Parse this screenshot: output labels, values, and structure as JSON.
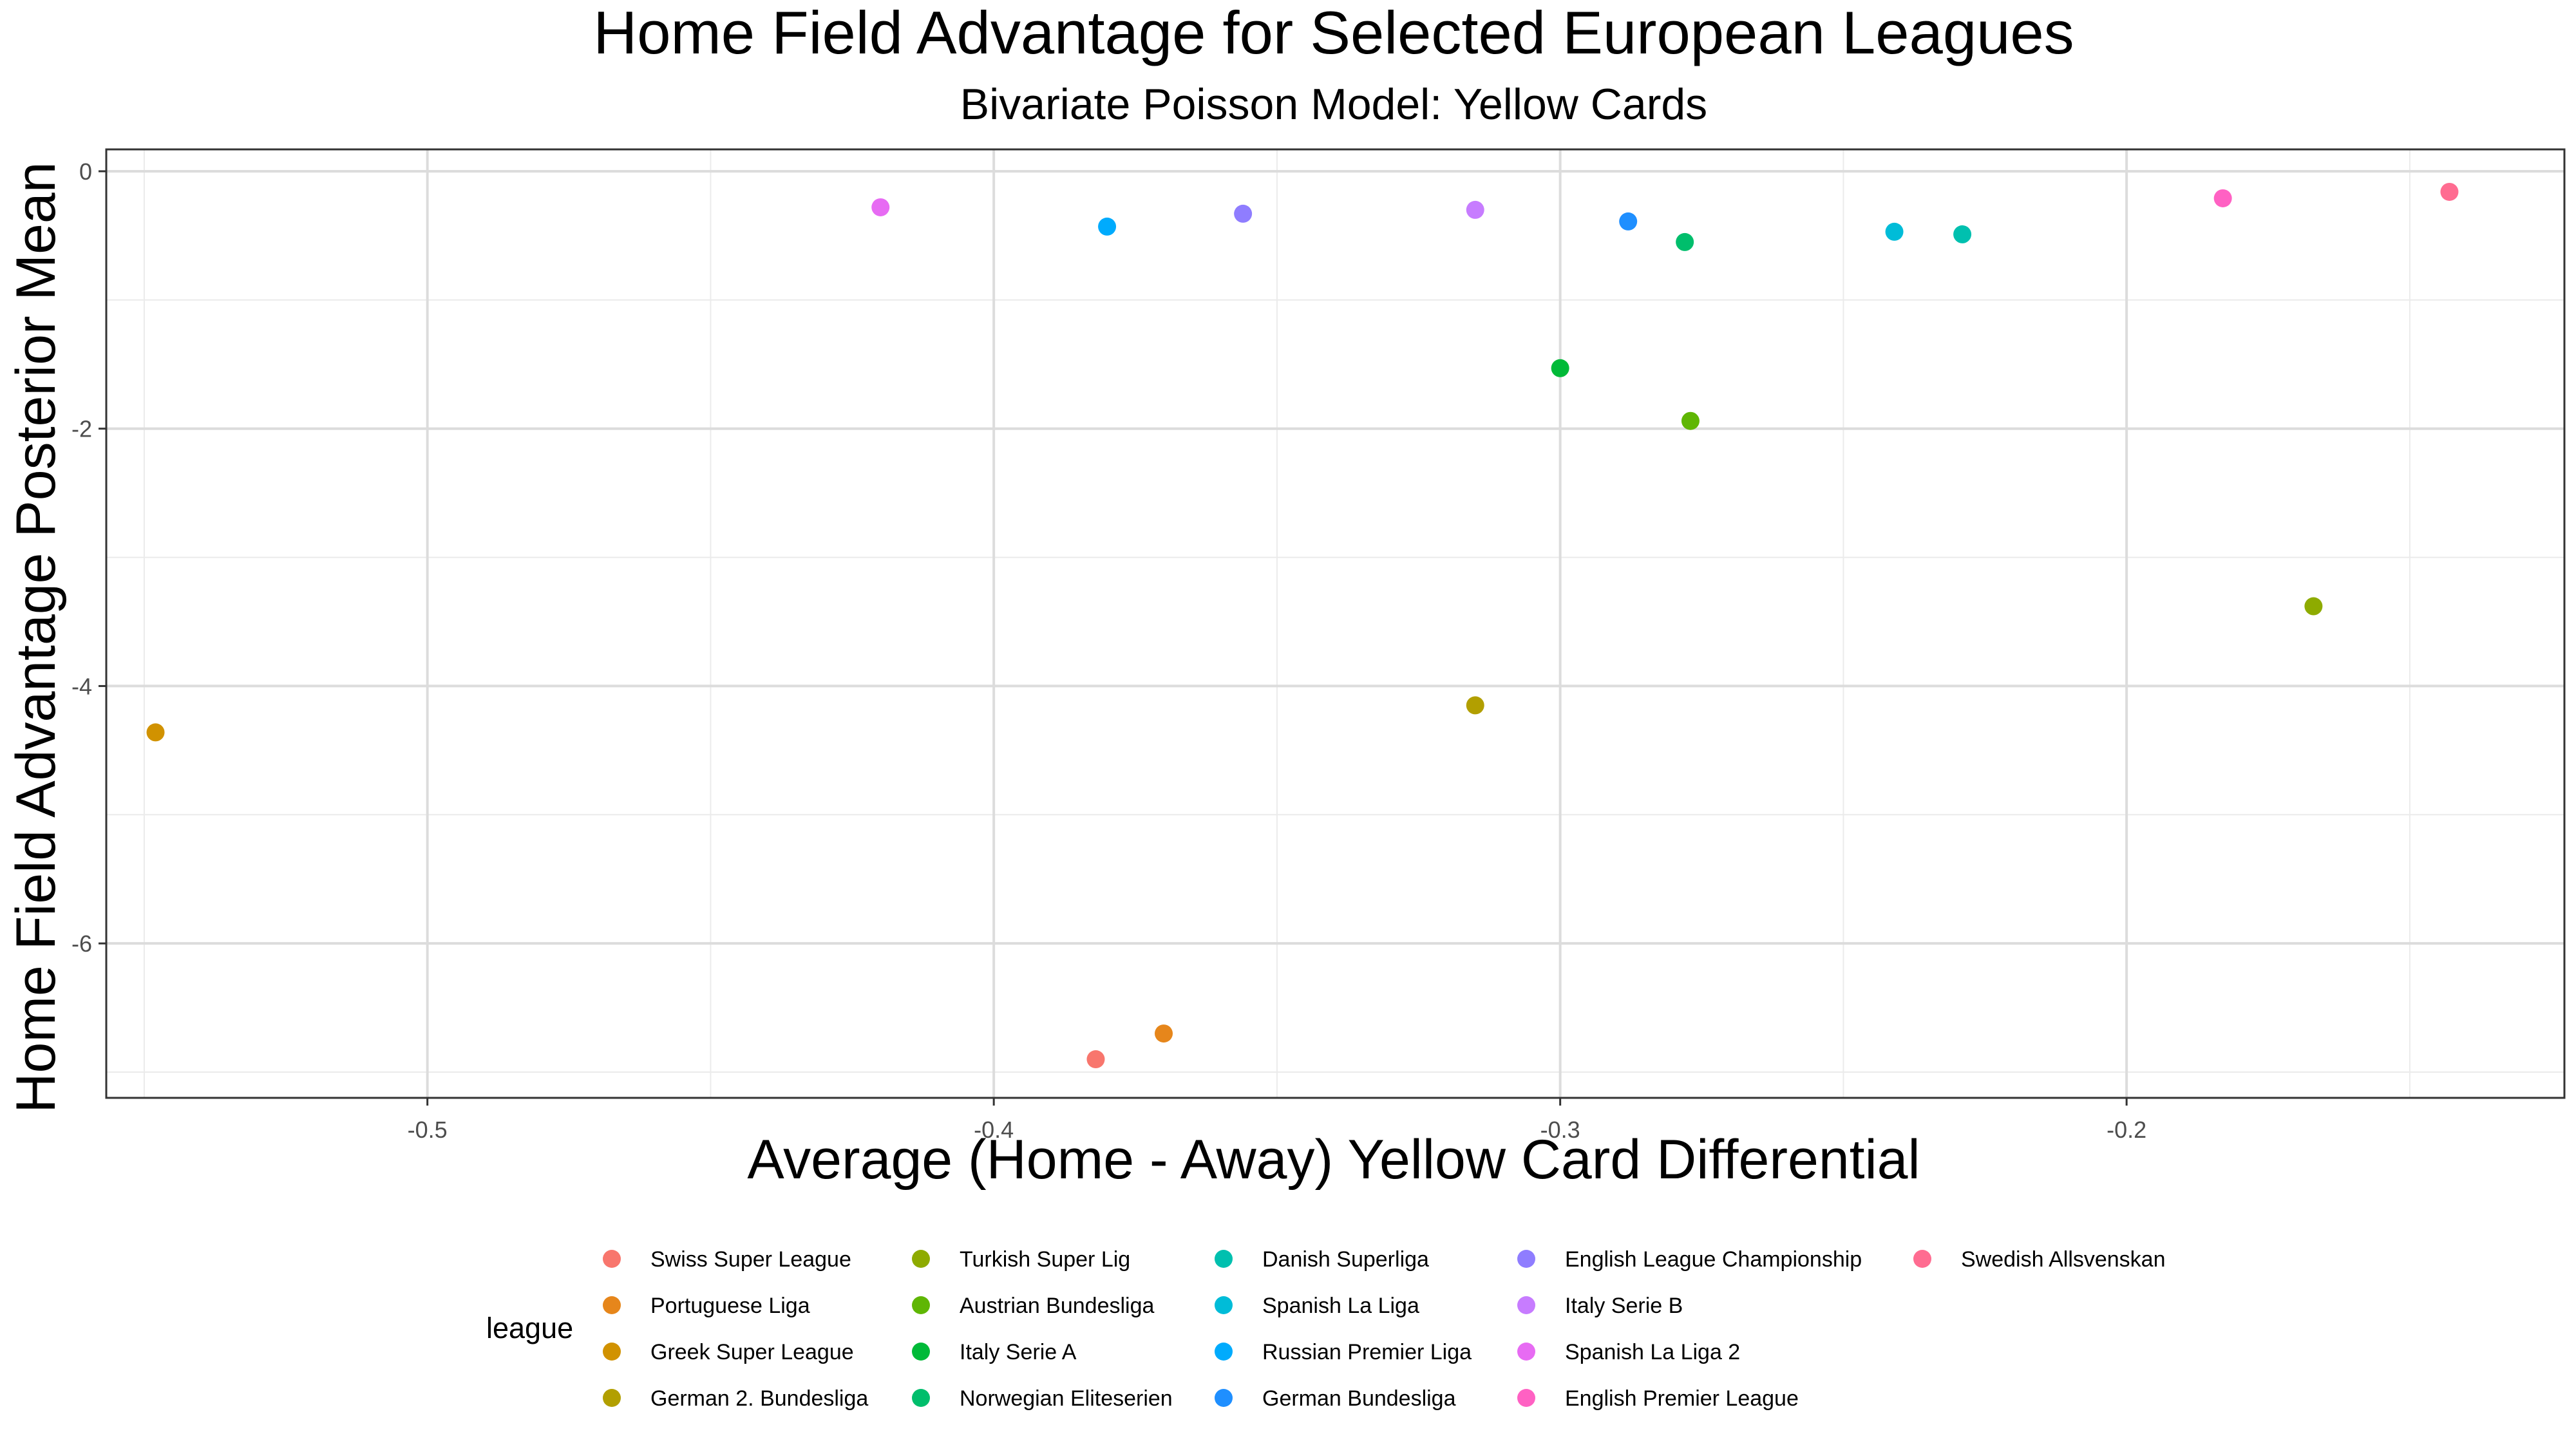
{
  "chart_data": {
    "type": "scatter",
    "title": "Home Field Advantage for Selected European Leagues",
    "subtitle": "Bivariate Poisson Model: Yellow Cards",
    "xlabel": "Average (Home - Away) Yellow Card Differential",
    "ylabel": "Home Field Advantage Posterior Mean",
    "xlim": [
      -0.5567,
      -0.1227
    ],
    "ylim": [
      -7.2,
      0.17
    ],
    "x_ticks": [
      {
        "value": -0.5,
        "label": "-0.5"
      },
      {
        "value": -0.4,
        "label": "-0.4"
      },
      {
        "value": -0.3,
        "label": "-0.3"
      },
      {
        "value": -0.2,
        "label": "-0.2"
      }
    ],
    "y_ticks": [
      {
        "value": 0,
        "label": "0"
      },
      {
        "value": -2,
        "label": "-2"
      },
      {
        "value": -4,
        "label": "-4"
      },
      {
        "value": -6,
        "label": "-6"
      }
    ],
    "grid": true,
    "legend": {
      "title": "league",
      "position": "bottom",
      "columns": 5,
      "rows": 4
    },
    "series": [
      {
        "name": "Swiss Super League",
        "color": "#F8766D",
        "x": -0.382,
        "y": -6.9
      },
      {
        "name": "Portuguese Liga",
        "color": "#E6861B",
        "x": -0.37,
        "y": -6.7
      },
      {
        "name": "Greek Super League",
        "color": "#D19200",
        "x": -0.548,
        "y": -4.36
      },
      {
        "name": "German 2. Bundesliga",
        "color": "#B29F00",
        "x": -0.315,
        "y": -4.15
      },
      {
        "name": "Turkish Super Lig",
        "color": "#8EAB00",
        "x": -0.167,
        "y": -3.38
      },
      {
        "name": "Austrian Bundesliga",
        "color": "#5FB604",
        "x": -0.277,
        "y": -1.94
      },
      {
        "name": "Italy Serie A",
        "color": "#00BA38",
        "x": -0.3,
        "y": -1.53
      },
      {
        "name": "Norwegian Eliteserien",
        "color": "#00BE6C",
        "x": -0.278,
        "y": -0.55
      },
      {
        "name": "Danish Superliga",
        "color": "#00C0AF",
        "x": -0.229,
        "y": -0.49
      },
      {
        "name": "Spanish La Liga",
        "color": "#00BCD8",
        "x": -0.241,
        "y": -0.47
      },
      {
        "name": "Russian Premier Liga",
        "color": "#00ABFD",
        "x": -0.38,
        "y": -0.43
      },
      {
        "name": "German Bundesliga",
        "color": "#1F8FFF",
        "x": -0.288,
        "y": -0.39
      },
      {
        "name": "English League Championship",
        "color": "#8F7DFF",
        "x": -0.356,
        "y": -0.33
      },
      {
        "name": "Italy Serie B",
        "color": "#C77CFF",
        "x": -0.315,
        "y": -0.3
      },
      {
        "name": "Spanish La Liga 2",
        "color": "#E76BF3",
        "x": -0.42,
        "y": -0.28
      },
      {
        "name": "English Premier League",
        "color": "#FF61C3",
        "x": -0.183,
        "y": -0.21
      },
      {
        "name": "Swedish Allsvenskan",
        "color": "#FF6C91",
        "x": -0.143,
        "y": -0.16
      }
    ]
  }
}
